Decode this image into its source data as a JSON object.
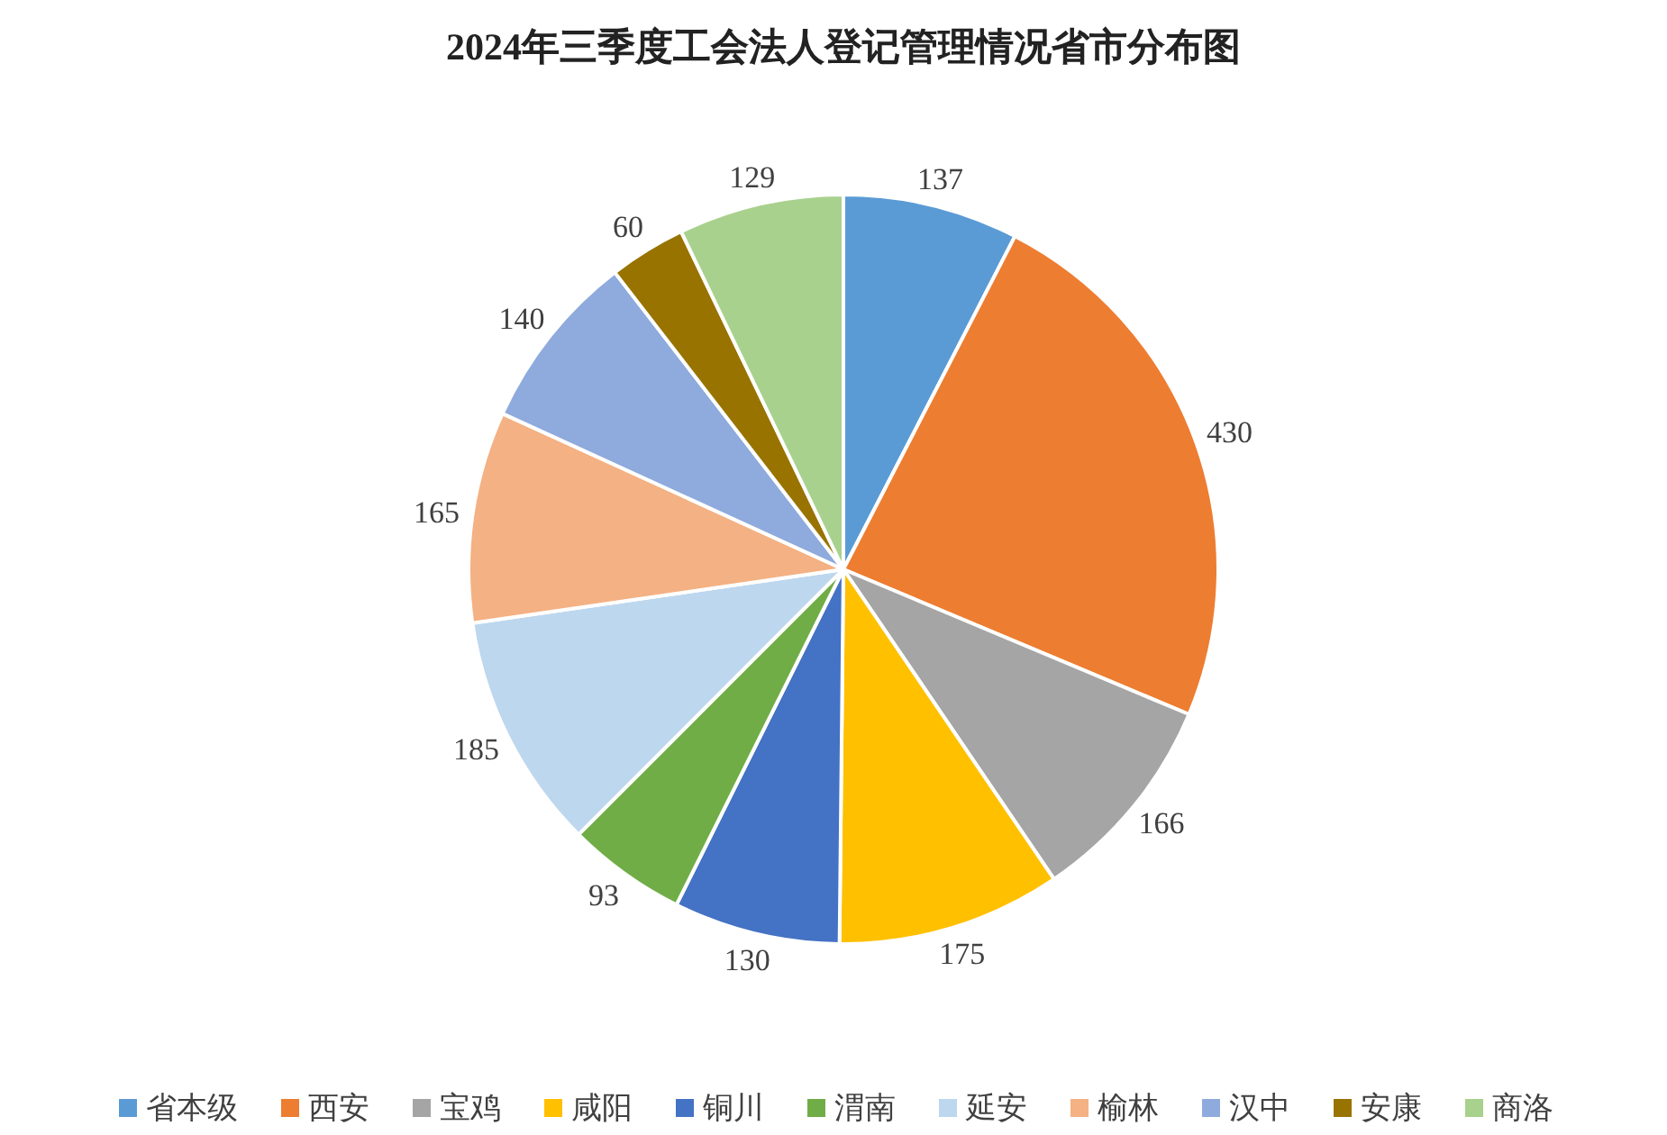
{
  "chart_data": {
    "type": "pie",
    "title": "2024年三季度工会法人登记管理情况省市分布图",
    "categories": [
      "省本级",
      "西安",
      "宝鸡",
      "咸阳",
      "铜川",
      "渭南",
      "延安",
      "榆林",
      "汉中",
      "安康",
      "商洛"
    ],
    "values": [
      137,
      430,
      166,
      175,
      130,
      93,
      185,
      165,
      140,
      60,
      129
    ],
    "colors": [
      "#5b9bd5",
      "#ed7d31",
      "#a5a5a5",
      "#ffc000",
      "#4472c4",
      "#70ad47",
      "#bdd7ee",
      "#f4b183",
      "#8faadc",
      "#997300",
      "#a9d18e"
    ],
    "data_labels": true,
    "legend": "bottom"
  }
}
